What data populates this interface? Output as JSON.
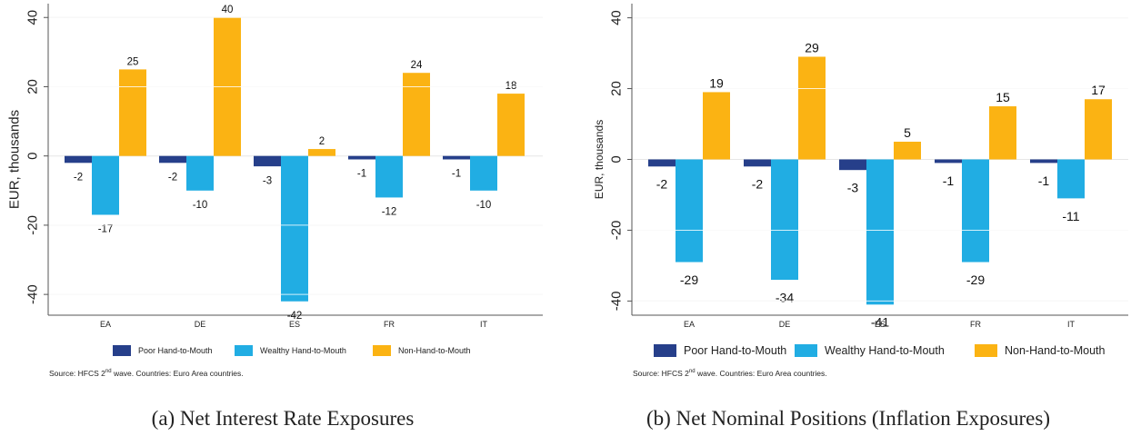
{
  "colors": {
    "poor": "#263f8a",
    "wealthy": "#21ade3",
    "non": "#fbb313"
  },
  "chart_data": [
    {
      "type": "bar",
      "categories": [
        "EA",
        "DE",
        "ES",
        "FR",
        "IT"
      ],
      "series": [
        {
          "name": "Poor Hand-to-Mouth",
          "values": [
            -2,
            -2,
            -3,
            -1,
            -1
          ]
        },
        {
          "name": "Wealthy Hand-to-Mouth",
          "values": [
            -17,
            -10,
            -42,
            -12,
            -10
          ]
        },
        {
          "name": "Non-Hand-to-Mouth",
          "values": [
            25,
            40,
            2,
            24,
            18
          ]
        }
      ],
      "data_labels": [
        [
          "-2",
          "-2",
          "-3",
          "-1",
          "-1"
        ],
        [
          "-17",
          "-10",
          "-42",
          "-12",
          "-10"
        ],
        [
          "25",
          "40",
          "2",
          "24",
          "18"
        ]
      ],
      "ylabel": "EUR, thousands",
      "xlabel": "",
      "ylim": [
        -46,
        44
      ],
      "yticks": [
        -40,
        -20,
        0,
        20,
        40
      ],
      "grid": true,
      "legend": "bottom",
      "note": {
        "pre": "Source: HFCS 2",
        "sup": "nd",
        "post": " wave. Countries: Euro Area countries."
      },
      "caption": "(a) Net Interest Rate Exposures"
    },
    {
      "type": "bar",
      "categories": [
        "EA",
        "DE",
        "ES",
        "FR",
        "IT"
      ],
      "series": [
        {
          "name": "Poor Hand-to-Mouth",
          "values": [
            -2,
            -2,
            -3,
            -1,
            -1
          ]
        },
        {
          "name": "Wealthy Hand-to-Mouth",
          "values": [
            -29,
            -34,
            -41,
            -29,
            -11
          ]
        },
        {
          "name": "Non-Hand-to-Mouth",
          "values": [
            19,
            29,
            5,
            15,
            17
          ]
        }
      ],
      "data_labels": [
        [
          "-2",
          "-2",
          "-3",
          "-1",
          "-1"
        ],
        [
          "-29",
          "-34",
          "-41",
          "-29",
          "-11"
        ],
        [
          "19",
          "29",
          "5",
          "15",
          "17"
        ]
      ],
      "ylabel": "EUR, thousands",
      "xlabel": "",
      "ylim": [
        -44,
        44
      ],
      "yticks": [
        -40,
        -20,
        0,
        20,
        40
      ],
      "grid": true,
      "legend": "bottom",
      "note": {
        "pre": "Source: HFCS 2",
        "sup": "nd",
        "post": " wave. Countries: Euro Area countries."
      },
      "caption": "(b) Net Nominal Positions (Inflation Exposures)"
    }
  ]
}
